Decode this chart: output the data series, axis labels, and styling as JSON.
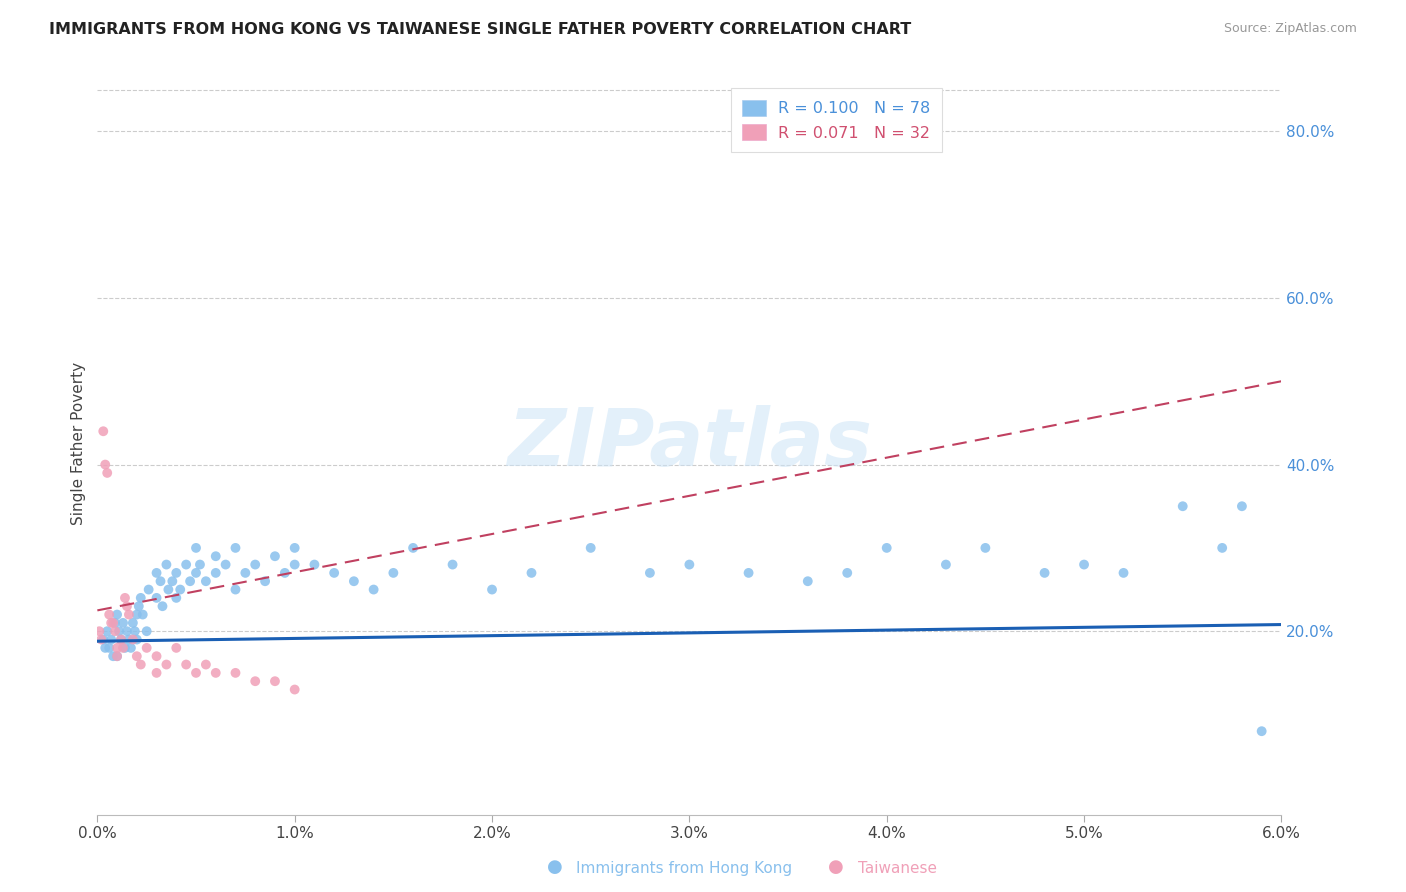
{
  "title": "IMMIGRANTS FROM HONG KONG VS TAIWANESE SINGLE FATHER POVERTY CORRELATION CHART",
  "source": "Source: ZipAtlas.com",
  "ylabel": "Single Father Poverty",
  "legend_label1": "Immigrants from Hong Kong",
  "legend_label2": "Taiwanese",
  "R1": 0.1,
  "N1": 78,
  "R2": 0.071,
  "N2": 32,
  "color1": "#89c0ed",
  "color2": "#f0a0b8",
  "trendline1_color": "#1a5fb4",
  "trendline2_color": "#c04060",
  "xlim": [
    0.0,
    0.06
  ],
  "ylim": [
    -0.02,
    0.87
  ],
  "right_yticks": [
    0.2,
    0.4,
    0.6,
    0.8
  ],
  "right_yticklabels": [
    "20.0%",
    "40.0%",
    "60.0%",
    "80.0%"
  ],
  "xtick_labels": [
    "0.0%",
    "1.0%",
    "2.0%",
    "3.0%",
    "4.0%",
    "5.0%",
    "6.0%"
  ],
  "xtick_values": [
    0.0,
    0.01,
    0.02,
    0.03,
    0.04,
    0.05,
    0.06
  ],
  "watermark": "ZIPatlas",
  "blue_x": [
    0.0003,
    0.0004,
    0.0005,
    0.0006,
    0.0007,
    0.0008,
    0.0009,
    0.001,
    0.001,
    0.0011,
    0.0012,
    0.0013,
    0.0014,
    0.0015,
    0.0016,
    0.0017,
    0.0018,
    0.0019,
    0.002,
    0.002,
    0.0021,
    0.0022,
    0.0023,
    0.0025,
    0.0026,
    0.003,
    0.003,
    0.0032,
    0.0033,
    0.0035,
    0.0036,
    0.0038,
    0.004,
    0.004,
    0.0042,
    0.0045,
    0.0047,
    0.005,
    0.005,
    0.0052,
    0.0055,
    0.006,
    0.006,
    0.0065,
    0.007,
    0.007,
    0.0075,
    0.008,
    0.0085,
    0.009,
    0.0095,
    0.01,
    0.01,
    0.011,
    0.012,
    0.013,
    0.014,
    0.015,
    0.016,
    0.018,
    0.02,
    0.022,
    0.025,
    0.028,
    0.03,
    0.033,
    0.036,
    0.038,
    0.04,
    0.043,
    0.045,
    0.048,
    0.05,
    0.052,
    0.055,
    0.057,
    0.059,
    0.058
  ],
  "blue_y": [
    0.19,
    0.18,
    0.2,
    0.18,
    0.19,
    0.17,
    0.21,
    0.17,
    0.22,
    0.2,
    0.19,
    0.21,
    0.18,
    0.2,
    0.19,
    0.18,
    0.21,
    0.2,
    0.22,
    0.19,
    0.23,
    0.24,
    0.22,
    0.2,
    0.25,
    0.27,
    0.24,
    0.26,
    0.23,
    0.28,
    0.25,
    0.26,
    0.24,
    0.27,
    0.25,
    0.28,
    0.26,
    0.27,
    0.3,
    0.28,
    0.26,
    0.29,
    0.27,
    0.28,
    0.25,
    0.3,
    0.27,
    0.28,
    0.26,
    0.29,
    0.27,
    0.28,
    0.3,
    0.28,
    0.27,
    0.26,
    0.25,
    0.27,
    0.3,
    0.28,
    0.25,
    0.27,
    0.3,
    0.27,
    0.28,
    0.27,
    0.26,
    0.27,
    0.3,
    0.28,
    0.3,
    0.27,
    0.28,
    0.27,
    0.35,
    0.3,
    0.08,
    0.35
  ],
  "pink_x": [
    0.0001,
    0.0002,
    0.0003,
    0.0004,
    0.0005,
    0.0006,
    0.0007,
    0.0008,
    0.0009,
    0.001,
    0.001,
    0.0012,
    0.0013,
    0.0014,
    0.0015,
    0.0016,
    0.0018,
    0.002,
    0.0022,
    0.0025,
    0.003,
    0.003,
    0.0035,
    0.004,
    0.0045,
    0.005,
    0.0055,
    0.006,
    0.007,
    0.008,
    0.009,
    0.01
  ],
  "pink_y": [
    0.2,
    0.19,
    0.44,
    0.4,
    0.39,
    0.22,
    0.21,
    0.21,
    0.2,
    0.18,
    0.17,
    0.19,
    0.18,
    0.24,
    0.23,
    0.22,
    0.19,
    0.17,
    0.16,
    0.18,
    0.15,
    0.17,
    0.16,
    0.18,
    0.16,
    0.15,
    0.16,
    0.15,
    0.15,
    0.14,
    0.14,
    0.13
  ],
  "trendline1_x0": 0.0,
  "trendline1_y0": 0.188,
  "trendline1_x1": 0.06,
  "trendline1_y1": 0.208,
  "trendline2_x0": 0.0,
  "trendline2_y0": 0.225,
  "trendline2_x1": 0.06,
  "trendline2_y1": 0.5
}
